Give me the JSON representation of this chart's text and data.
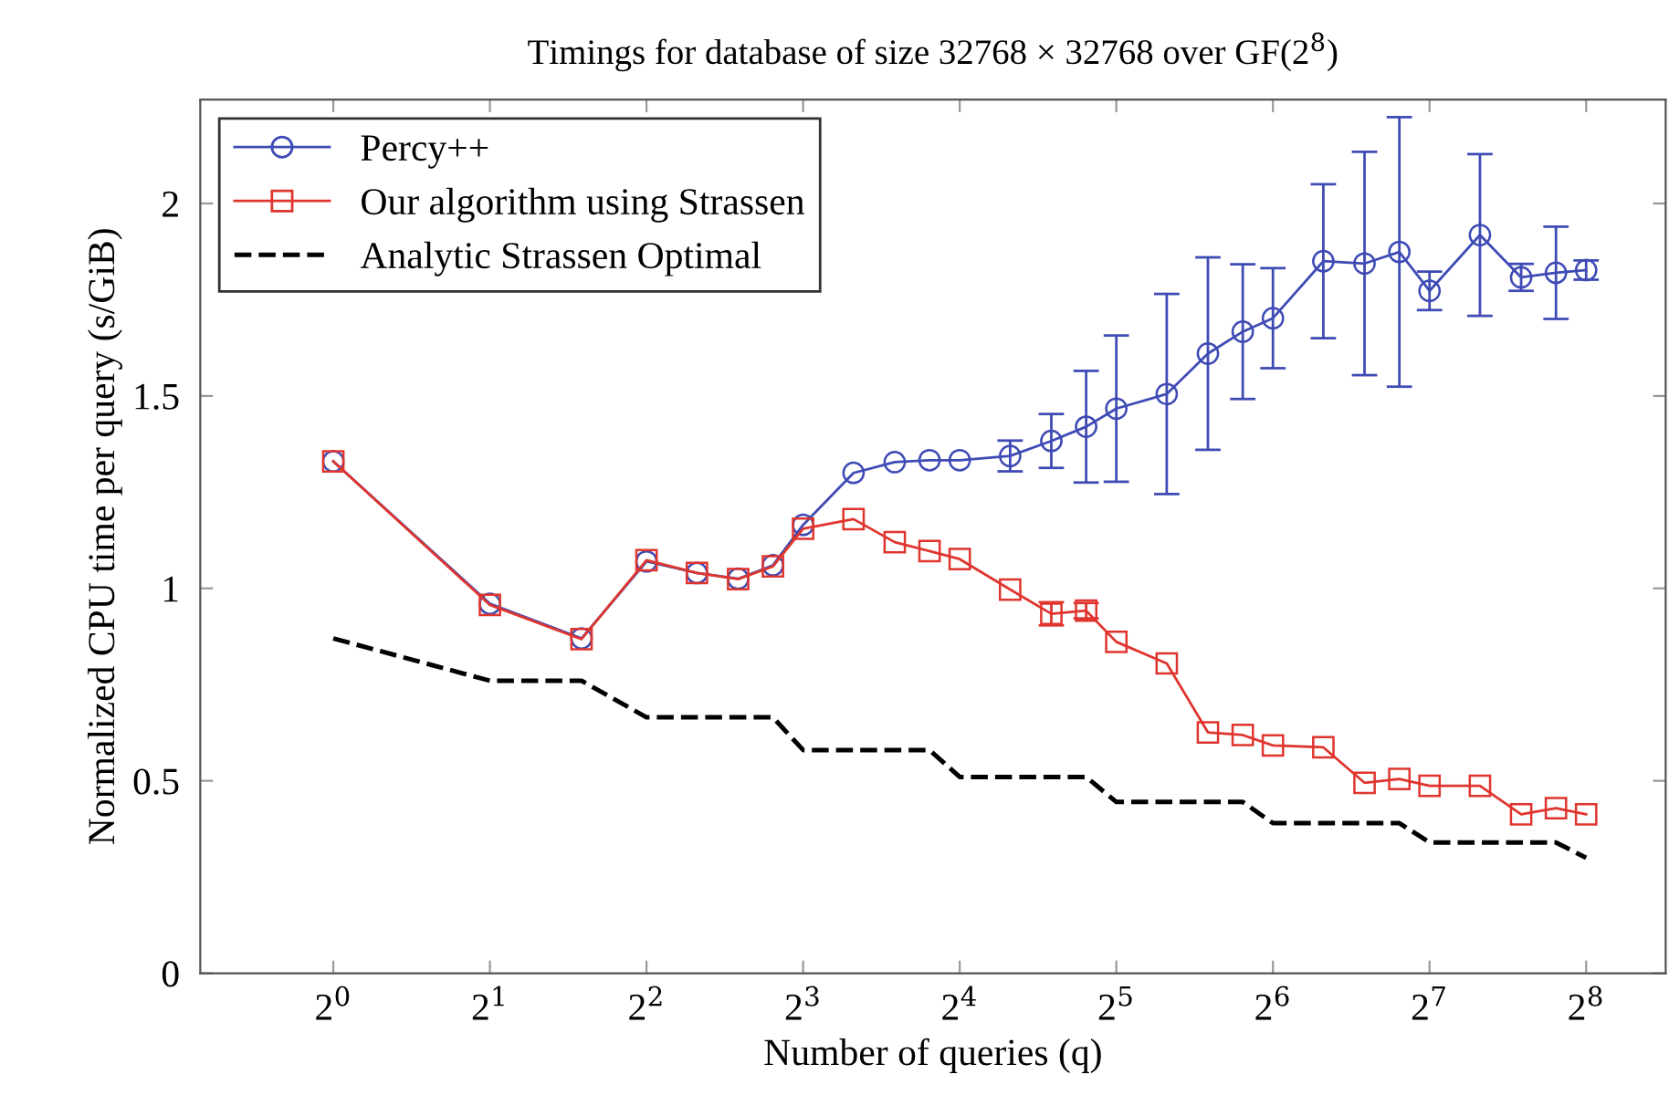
{
  "chart_data": {
    "type": "line",
    "title": "Timings for database of size 32768 × 32768 over GF(2$^{8}$)",
    "xlabel": "Number of queries (q)",
    "ylabel": "Normalized CPU time per query (s/GiB)",
    "log": "x",
    "xlim": [
      0.555,
      364
    ],
    "ylim": [
      0,
      2.27
    ],
    "xticks": [
      {
        "value": 1,
        "label": "2$^{0}$"
      },
      {
        "value": 2,
        "label": "2$^{1}$"
      },
      {
        "value": 4,
        "label": "2$^{2}$"
      },
      {
        "value": 8,
        "label": "2$^{3}$"
      },
      {
        "value": 16,
        "label": "2$^{4}$"
      },
      {
        "value": 32,
        "label": "2$^{5}$"
      },
      {
        "value": 64,
        "label": "2$^{6}$"
      },
      {
        "value": 128,
        "label": "2$^{7}$"
      },
      {
        "value": 256,
        "label": "2$^{8}$"
      }
    ],
    "yticks": [
      0,
      0.5,
      1,
      1.5,
      2
    ],
    "grid": false,
    "legend": "top left",
    "series": [
      {
        "name": "Percy++",
        "color": "#3f4bb5",
        "marker": "circle",
        "line_style": "solid",
        "x": [
          1,
          2,
          3,
          4,
          5,
          6,
          7,
          8,
          10,
          12,
          14,
          16,
          20,
          24,
          28,
          32,
          40,
          48,
          56,
          64,
          80,
          96,
          112,
          128,
          160,
          192,
          224,
          256
        ],
        "values": [
          1.33,
          0.96,
          0.87,
          1.07,
          1.04,
          1.025,
          1.06,
          1.165,
          1.3,
          1.328,
          1.333,
          1.333,
          1.344,
          1.383,
          1.42,
          1.467,
          1.505,
          1.61,
          1.667,
          1.702,
          1.85,
          1.844,
          1.874,
          1.773,
          1.918,
          1.808,
          1.82,
          1.827
        ],
        "errors": [
          null,
          null,
          null,
          null,
          null,
          null,
          null,
          null,
          null,
          null,
          null,
          null,
          0.04,
          0.07,
          0.145,
          0.19,
          0.26,
          0.25,
          0.175,
          0.13,
          0.2,
          0.29,
          0.35,
          0.05,
          0.21,
          0.035,
          0.12,
          0.025
        ]
      },
      {
        "name": "Our algorithm using Strassen",
        "color": "#e0352e",
        "marker": "square",
        "line_style": "solid",
        "x": [
          1,
          2,
          3,
          4,
          5,
          6,
          7,
          8,
          10,
          12,
          14,
          16,
          20,
          24,
          28,
          32,
          40,
          48,
          56,
          64,
          80,
          96,
          112,
          128,
          160,
          192,
          224,
          256
        ],
        "values": [
          1.33,
          0.957,
          0.868,
          1.073,
          1.04,
          1.024,
          1.057,
          1.155,
          1.18,
          1.12,
          1.097,
          1.076,
          0.997,
          0.934,
          0.942,
          0.861,
          0.805,
          0.626,
          0.619,
          0.592,
          0.587,
          0.495,
          0.505,
          0.487,
          0.487,
          0.413,
          0.429,
          0.413
        ],
        "errors": [
          null,
          null,
          null,
          null,
          null,
          null,
          null,
          null,
          null,
          null,
          null,
          null,
          null,
          0.03,
          0.02,
          null,
          null,
          null,
          null,
          null,
          null,
          null,
          null,
          null,
          null,
          null,
          null,
          null
        ]
      },
      {
        "name": "Analytic Strassen Optimal",
        "color": "#000000",
        "marker": "none",
        "line_style": "dashed",
        "x": [
          1,
          2,
          3,
          4,
          7,
          8,
          14,
          16,
          28,
          32,
          56,
          64,
          112,
          128,
          224,
          256
        ],
        "values": [
          0.87,
          0.76,
          0.76,
          0.665,
          0.665,
          0.58,
          0.58,
          0.51,
          0.51,
          0.445,
          0.445,
          0.39,
          0.39,
          0.34,
          0.34,
          0.3
        ]
      }
    ]
  }
}
